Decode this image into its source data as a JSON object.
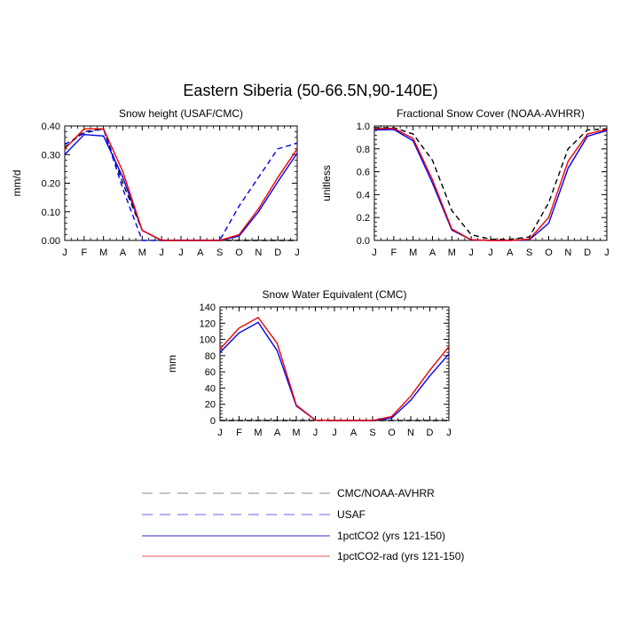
{
  "figure": {
    "title": "Eastern Siberia (50-66.5N,90-140E)"
  },
  "colors": {
    "obs_cmc": "#000000",
    "usaf": "#0000ee",
    "pct_co2": "#2020d0",
    "pct_co2_rad": "#ee0000"
  },
  "legend": {
    "items": [
      {
        "label": "CMC/NOAA-AVHRR",
        "color": "#888888",
        "dash": "dashed"
      },
      {
        "label": "USAF",
        "color": "#6666dd",
        "dash": "dashed"
      },
      {
        "label": "1pctCO2 (yrs 121-150)",
        "color": "#3333cc",
        "dash": "solid"
      },
      {
        "label": "1pctCO2-rad (yrs 121-150)",
        "color": "#ee5555",
        "dash": "solid"
      }
    ]
  },
  "chart_data": [
    {
      "type": "line",
      "title": "Snow height (USAF/CMC)",
      "xlabel": "",
      "ylabel": "mm/d",
      "categories": [
        "J",
        "F",
        "M",
        "A",
        "M",
        "J",
        "J",
        "A",
        "S",
        "O",
        "N",
        "D",
        "J"
      ],
      "ylim": [
        0,
        0.4
      ],
      "yticks": [
        "0.00",
        "0.10",
        "0.20",
        "0.30",
        "0.40"
      ],
      "yticks_values": [
        0,
        0.1,
        0.2,
        0.3,
        0.4
      ],
      "grid": false,
      "series": [
        {
          "key": "cmc",
          "values": [
            0.325,
            0.38,
            0.39,
            0.2,
            0.035,
            0,
            0,
            0,
            0,
            0,
            0,
            0,
            0
          ],
          "style": "dashed",
          "color": "#000000"
        },
        {
          "key": "usaf",
          "values": [
            0.335,
            0.375,
            0.39,
            0.18,
            0,
            0,
            0,
            0,
            0,
            0.12,
            0.22,
            0.32,
            0.34
          ],
          "style": "dashed",
          "color": "#0000ee"
        },
        {
          "key": "pct",
          "values": [
            0.3,
            0.37,
            0.365,
            0.22,
            0.035,
            0,
            0,
            0,
            0,
            0.015,
            0.1,
            0.205,
            0.305
          ],
          "style": "solid",
          "color": "#0000ee"
        },
        {
          "key": "rad",
          "values": [
            0.32,
            0.39,
            0.39,
            0.24,
            0.035,
            0,
            0,
            0,
            0,
            0.02,
            0.11,
            0.22,
            0.32
          ],
          "style": "solid",
          "color": "#ee0000"
        }
      ]
    },
    {
      "type": "line",
      "title": "Fractional Snow Cover (NOAA-AVHRR)",
      "xlabel": "",
      "ylabel": "unitless",
      "categories": [
        "J",
        "F",
        "M",
        "A",
        "M",
        "J",
        "J",
        "A",
        "S",
        "O",
        "N",
        "D",
        "J"
      ],
      "ylim": [
        0,
        1.0
      ],
      "yticks": [
        "0.0",
        "0.2",
        "0.4",
        "0.6",
        "0.8",
        "1.0"
      ],
      "yticks_values": [
        0,
        0.2,
        0.4,
        0.6,
        0.8,
        1.0
      ],
      "grid": false,
      "series": [
        {
          "key": "noaa",
          "values": [
            0.985,
            0.985,
            0.93,
            0.7,
            0.26,
            0.05,
            0.01,
            0.01,
            0.03,
            0.33,
            0.8,
            0.965,
            0.975
          ],
          "style": "dashed",
          "color": "#000000"
        },
        {
          "key": "pct",
          "values": [
            0.965,
            0.97,
            0.87,
            0.5,
            0.09,
            0.005,
            0,
            0,
            0.005,
            0.15,
            0.63,
            0.91,
            0.96
          ],
          "style": "solid",
          "color": "#0000ee"
        },
        {
          "key": "rad",
          "values": [
            0.975,
            0.98,
            0.89,
            0.53,
            0.1,
            0.005,
            0,
            0,
            0.01,
            0.2,
            0.69,
            0.93,
            0.97
          ],
          "style": "solid",
          "color": "#ee0000"
        }
      ]
    },
    {
      "type": "line",
      "title": "Snow Water Equivalent (CMC)",
      "xlabel": "",
      "ylabel": "mm",
      "categories": [
        "J",
        "F",
        "M",
        "A",
        "M",
        "J",
        "J",
        "A",
        "S",
        "O",
        "N",
        "D",
        "J"
      ],
      "ylim": [
        0,
        140
      ],
      "yticks": [
        "0",
        "20",
        "40",
        "60",
        "80",
        "100",
        "120",
        "140"
      ],
      "yticks_values": [
        0,
        20,
        40,
        60,
        80,
        100,
        120,
        140
      ],
      "grid": false,
      "series": [
        {
          "key": "cmc",
          "values": [
            0,
            0,
            0,
            0,
            0,
            0,
            0,
            0,
            0,
            0,
            0,
            0,
            0
          ],
          "style": "dashed",
          "color": "#000000"
        },
        {
          "key": "pct",
          "values": [
            84,
            108,
            121,
            86,
            18,
            0.5,
            0,
            0,
            0,
            3,
            25,
            55,
            82
          ],
          "style": "solid",
          "color": "#0000ee"
        },
        {
          "key": "rad",
          "values": [
            88,
            114,
            127,
            95,
            19,
            0.5,
            0,
            0,
            0,
            5,
            30,
            62,
            91
          ],
          "style": "solid",
          "color": "#ee0000"
        }
      ]
    }
  ]
}
